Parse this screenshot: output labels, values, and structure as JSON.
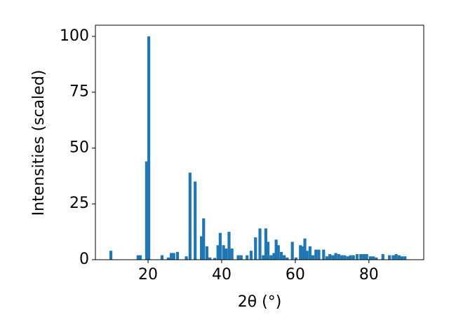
{
  "chart_data": {
    "type": "bar",
    "x_label": "2θ (°)",
    "y_label": "Intensities (scaled)",
    "x": [
      9.9,
      17.3,
      17.9,
      19.6,
      20.2,
      23.8,
      25.5,
      26.3,
      27.0,
      28.0,
      30.4,
      31.4,
      32.8,
      34.5,
      35.1,
      36.0,
      36.8,
      38.1,
      39.0,
      39.6,
      40.5,
      41.2,
      42.0,
      42.8,
      44.5,
      45.3,
      46.9,
      48.0,
      49.2,
      50.4,
      51.3,
      52.0,
      52.6,
      53.4,
      54.2,
      54.8,
      55.4,
      56.2,
      57.0,
      57.8,
      59.2,
      60.2,
      61.4,
      62.0,
      62.6,
      63.2,
      64.0,
      64.8,
      65.6,
      66.4,
      67.7,
      68.6,
      69.4,
      70.2,
      71.0,
      71.8,
      72.6,
      73.4,
      74.2,
      75.0,
      75.8,
      76.8,
      77.8,
      78.6,
      79.4,
      80.4,
      81.2,
      82.0,
      83.8,
      85.6,
      86.6,
      87.4,
      88.2,
      89.0,
      89.8
    ],
    "values": [
      4,
      2,
      2,
      44,
      100,
      2,
      1,
      3,
      3,
      3.5,
      1.5,
      39,
      35,
      10.5,
      18.5,
      6,
      1,
      0.8,
      6.5,
      12,
      6.5,
      5,
      12.5,
      5,
      2,
      2,
      2,
      4,
      10,
      14,
      2,
      14,
      8,
      2,
      3,
      9,
      6.5,
      3.5,
      2,
      1,
      8,
      1,
      6.5,
      6,
      9.5,
      4,
      6,
      2,
      4.5,
      4.5,
      4.5,
      1.5,
      2.5,
      2,
      3,
      2.5,
      2,
      2,
      1.5,
      2,
      2,
      2.5,
      2.5,
      2.5,
      2.5,
      1.5,
      1.5,
      1,
      2.5,
      2,
      2,
      2.5,
      2,
      1.5,
      1.5
    ],
    "color": "#1f77b4",
    "xlim": [
      5.7,
      94.9
    ],
    "ylim": [
      0,
      105
    ],
    "xticks": [
      20,
      40,
      60,
      80
    ],
    "yticks": [
      0,
      25,
      50,
      75,
      100
    ]
  }
}
